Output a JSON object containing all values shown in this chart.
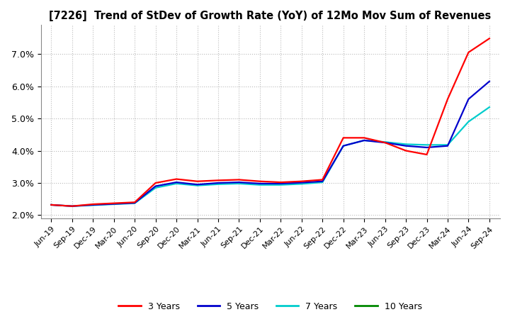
{
  "title": "[7226]  Trend of StDev of Growth Rate (YoY) of 12Mo Mov Sum of Revenues",
  "title_fontsize": 10.5,
  "ylim": [
    0.019,
    0.079
  ],
  "yticks": [
    0.02,
    0.03,
    0.04,
    0.05,
    0.06,
    0.07
  ],
  "background_color": "#ffffff",
  "grid_color": "#bbbbbb",
  "legend_labels": [
    "3 Years",
    "5 Years",
    "7 Years",
    "10 Years"
  ],
  "legend_colors": [
    "#ff0000",
    "#0000cc",
    "#00cccc",
    "#008800"
  ],
  "xtick_labels": [
    "Jun-19",
    "Sep-19",
    "Dec-19",
    "Mar-20",
    "Jun-20",
    "Sep-20",
    "Dec-20",
    "Mar-21",
    "Jun-21",
    "Sep-21",
    "Dec-21",
    "Mar-22",
    "Jun-22",
    "Sep-22",
    "Dec-22",
    "Mar-23",
    "Jun-23",
    "Sep-23",
    "Dec-23",
    "Mar-24",
    "Jun-24",
    "Sep-24"
  ],
  "series_3y": [
    0.0232,
    0.0228,
    0.0234,
    0.0237,
    0.024,
    0.03,
    0.0312,
    0.0305,
    0.0308,
    0.031,
    0.0305,
    0.0302,
    0.0305,
    0.031,
    0.044,
    0.044,
    0.0425,
    0.04,
    0.0388,
    0.056,
    0.0705,
    0.0748
  ],
  "series_5y": [
    0.0232,
    0.0228,
    0.0232,
    0.0235,
    0.0238,
    0.029,
    0.0302,
    0.0295,
    0.03,
    0.0302,
    0.0298,
    0.0298,
    0.0301,
    0.0305,
    0.0415,
    0.0432,
    0.0425,
    0.0415,
    0.041,
    0.0415,
    0.056,
    0.0615
  ],
  "series_7y": [
    0.0232,
    0.0228,
    0.0231,
    0.0234,
    0.0237,
    0.0285,
    0.0298,
    0.0292,
    0.0296,
    0.0298,
    0.0294,
    0.0294,
    0.0297,
    0.0302,
    0.0415,
    0.0432,
    0.0427,
    0.042,
    0.0418,
    0.0418,
    0.049,
    0.0535
  ],
  "series_10y": [
    null,
    null,
    null,
    null,
    null,
    null,
    null,
    null,
    null,
    null,
    null,
    null,
    null,
    null,
    null,
    null,
    null,
    null,
    null,
    null,
    null,
    null
  ]
}
